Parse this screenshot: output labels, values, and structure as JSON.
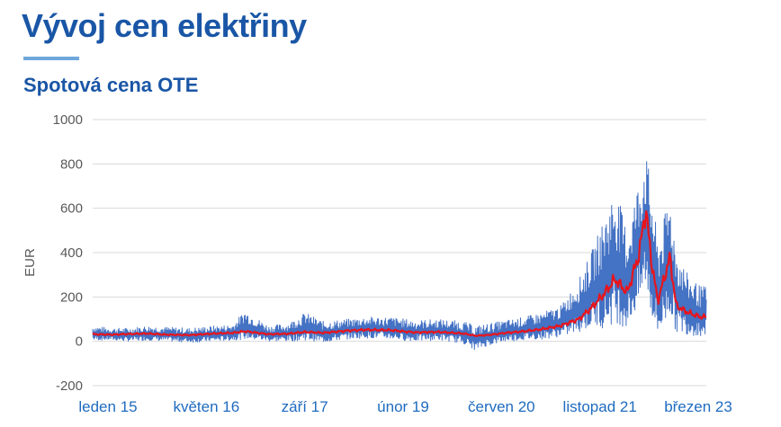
{
  "page": {
    "title": "Vývoj cen elektřiny",
    "subtitle": "Spotová cena OTE"
  },
  "colors": {
    "title": "#1a56a6",
    "accent_line": "#6fa8dc",
    "daily_series": "#4472c4",
    "average_series": "#e8141c",
    "grid": "#d9d9d9",
    "x_labels": "#1f6bbf"
  },
  "chart_data": {
    "type": "line",
    "title": "Spotová cena OTE",
    "xlabel": "",
    "ylabel": "EUR",
    "ylim": [
      -200,
      1000
    ],
    "yticks": [
      1000,
      800,
      600,
      400,
      200,
      0,
      -200
    ],
    "x_tick_labels": [
      "leden 15",
      "květen 16",
      "září 17",
      "únor 19",
      "červen 20",
      "listopad 21",
      "březen 23"
    ],
    "grid": true,
    "legend": "none",
    "x": [
      "2015-01",
      "2015-04",
      "2015-07",
      "2015-10",
      "2016-01",
      "2016-05",
      "2016-09",
      "2016-12",
      "2017-02",
      "2017-06",
      "2017-09",
      "2017-12",
      "2018-03",
      "2018-07",
      "2018-10",
      "2019-02",
      "2019-06",
      "2019-10",
      "2020-02",
      "2020-04",
      "2020-06",
      "2020-09",
      "2020-12",
      "2021-03",
      "2021-06",
      "2021-09",
      "2021-11",
      "2022-01",
      "2022-03",
      "2022-05",
      "2022-07",
      "2022-08",
      "2022-09",
      "2022-10",
      "2022-12",
      "2023-01",
      "2023-03",
      "2023-05"
    ],
    "series": [
      {
        "values": [
          32,
          30,
          33,
          35,
          30,
          28,
          35,
          38,
          45,
          32,
          34,
          42,
          38,
          48,
          52,
          50,
          40,
          42,
          35,
          25,
          28,
          38,
          45,
          55,
          70,
          100,
          150,
          210,
          280,
          220,
          400,
          600,
          350,
          180,
          380,
          160,
          130,
          110
        ]
      }
    ],
    "daily_spread": {
      "x": [
        "2015-01",
        "2015-04",
        "2015-07",
        "2015-10",
        "2016-01",
        "2016-05",
        "2016-09",
        "2016-12",
        "2017-02",
        "2017-06",
        "2017-09",
        "2017-12",
        "2018-03",
        "2018-07",
        "2018-10",
        "2019-02",
        "2019-06",
        "2019-10",
        "2020-02",
        "2020-04",
        "2020-06",
        "2020-09",
        "2020-12",
        "2021-03",
        "2021-06",
        "2021-09",
        "2021-11",
        "2022-01",
        "2022-03",
        "2022-05",
        "2022-07",
        "2022-08",
        "2022-09",
        "2022-10",
        "2022-12",
        "2023-01",
        "2023-03",
        "2023-05"
      ],
      "low": [
        5,
        5,
        0,
        5,
        0,
        -5,
        0,
        5,
        10,
        0,
        0,
        5,
        -5,
        10,
        15,
        10,
        0,
        5,
        -10,
        -40,
        -20,
        0,
        5,
        10,
        20,
        40,
        60,
        60,
        80,
        60,
        150,
        250,
        100,
        10,
        120,
        40,
        30,
        20
      ],
      "high": [
        70,
        60,
        60,
        70,
        65,
        60,
        70,
        75,
        140,
        70,
        80,
        130,
        90,
        100,
        110,
        110,
        95,
        100,
        90,
        70,
        80,
        95,
        110,
        130,
        160,
        280,
        400,
        550,
        700,
        500,
        750,
        870,
        680,
        450,
        660,
        420,
        300,
        250
      ]
    }
  }
}
